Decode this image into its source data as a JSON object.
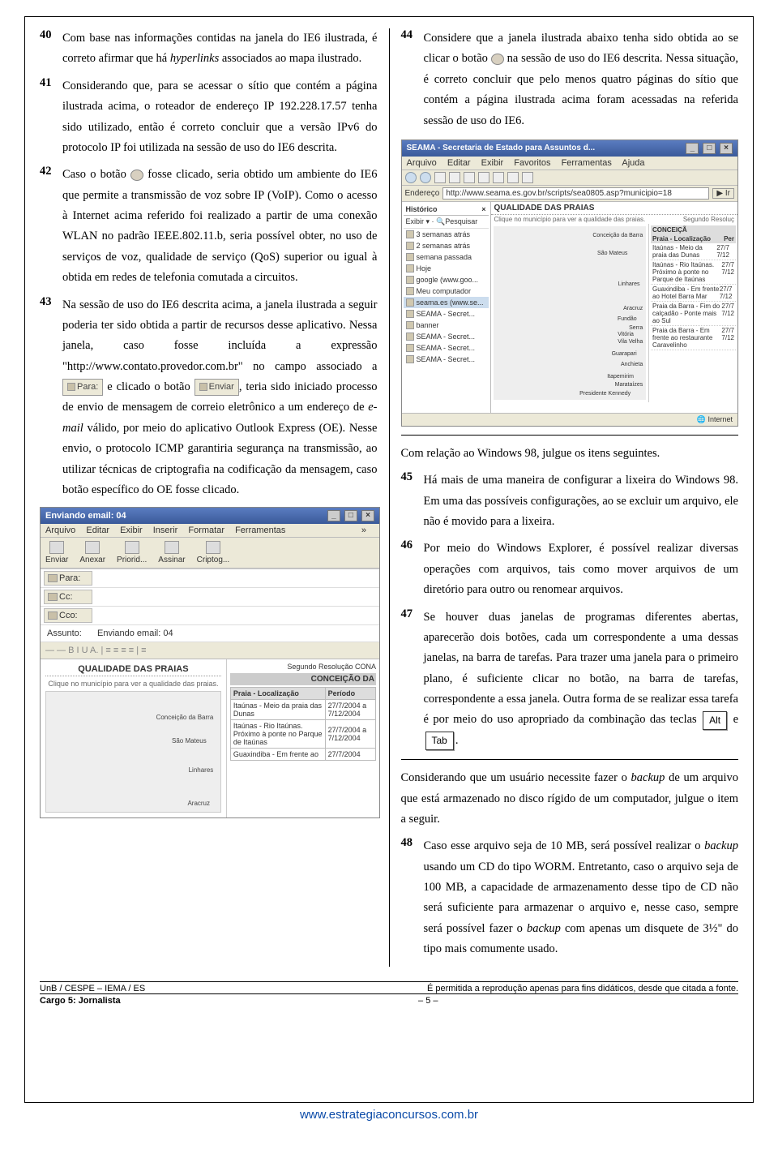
{
  "questions": {
    "q40": "Com base nas informações contidas na janela do IE6 ilustrada, é correto afirmar que há <span class=\"ital\">hyperlinks</span> associados ao mapa ilustrado.",
    "q41": "Considerando que, para se acessar o sítio que contém a página ilustrada acima, o roteador de endereço IP 192.228.17.57 tenha sido utilizado, então é correto concluir que a versão IPv6 do protocolo IP foi utilizada na sessão de uso do IE6 descrita.",
    "q42_a": "Caso o botão ",
    "q42_b": " fosse clicado, seria obtido um ambiente do IE6 que permite a transmissão de voz sobre IP (VoIP). Como o acesso à Internet acima referido foi realizado a partir de uma conexão WLAN no padrão IEEE.802.11.b, seria possível obter, no uso de serviços de voz, qualidade de serviço (QoS) superior ou igual à obtida em redes de telefonia comutada a circuitos.",
    "q43_a": "Na sessão de uso do IE6 descrita acima, a janela ilustrada a seguir poderia ter sido obtida a partir de recursos desse aplicativo. Nessa janela, caso fosse incluída a expressão \"http://www.contato.provedor.com.br\" no campo associado a ",
    "q43_b": " e clicado o botão ",
    "q43_c": ", teria sido iniciado processo de envio de mensagem de correio eletrônico a um endereço de <span class=\"ital\">e-mail</span> válido, por meio do aplicativo Outlook Express (OE). Nesse envio, o protocolo ICMP garantiria segurança na transmissão, ao utilizar técnicas de criptografia na codificação da mensagem, caso botão específico do OE fosse clicado.",
    "q44_a": "Considere que a janela ilustrada abaixo tenha sido obtida ao se clicar o botão ",
    "q44_b": " na sessão de uso do IE6 descrita. Nessa situação, é correto concluir que pelo menos quatro páginas do sítio que contém a página ilustrada acima foram acessadas na referida sessão de uso do IE6.",
    "lead45": "Com relação ao Windows 98, julgue os itens seguintes.",
    "q45": "Há mais de uma maneira de configurar a lixeira do Windows 98. Em uma das possíveis configurações, ao se excluir um arquivo, ele não é movido para a lixeira.",
    "q46": "Por meio do Windows Explorer, é possível realizar diversas operações com arquivos, tais como mover arquivos de um diretório para outro ou renomear arquivos.",
    "q47_a": "Se houver duas janelas de programas diferentes abertas, aparecerão dois botões, cada um correspondente a uma dessas janelas, na barra de tarefas. Para trazer uma janela para o primeiro plano, é suficiente clicar no botão, na barra de tarefas, correspondente a essa janela. Outra forma de se realizar essa tarefa é por meio do uso apropriado da combinação das teclas ",
    "q47_b": " e ",
    "q47_c": ".",
    "lead48": "Considerando que um usuário necessite fazer o <span class=\"ital\">backup</span> de um arquivo que está armazenado no disco rígido de um computador, julgue o item a seguir.",
    "q48": "Caso esse arquivo seja de 10 MB, será possível realizar o <span class=\"ital\">backup</span> usando um CD do tipo WORM. Entretanto, caso o arquivo seja de 100 MB, a capacidade de armazenamento desse tipo de CD não será suficiente para armazenar o arquivo e, nesse caso, sempre será possível fazer o <span class=\"ital\">backup</span> com apenas um disquete de 3½\" do tipo mais comumente usado."
  },
  "keys": {
    "alt": "Alt",
    "tab": "Tab"
  },
  "inline": {
    "para": "Para:",
    "enviar": "Enviar"
  },
  "mail": {
    "title": "Enviando email: 04",
    "menu": [
      "Arquivo",
      "Editar",
      "Exibir",
      "Inserir",
      "Formatar",
      "Ferramentas"
    ],
    "toolbar": [
      "Enviar",
      "Anexar",
      "Priorid...",
      "Assinar",
      "Criptog..."
    ],
    "fields": {
      "para": "Para:",
      "cc": "Cc:",
      "cco": "Cco:",
      "assunto_lbl": "Assunto:",
      "assunto_val": "Enviando email: 04"
    },
    "fmtbar": "― ―  B  I  U  A. | ≡  ≡  ≡ ≡ | ≡",
    "qhdr": "QUALIDADE DAS PRAIAS",
    "qsub": "Clique no município para ver a qualidade das praias.",
    "qresol": "Segundo Resolução CONA",
    "qsec": "CONCEIÇÃO DA",
    "th1": "Praia - Localização",
    "th2": "Período",
    "rows": [
      [
        "Itaúnas - Meio da praia das Dunas",
        "27/7/2004 a 7/12/2004"
      ],
      [
        "Itaúnas - Rio Itaúnas. Próximo à ponte no Parque de Itaúnas",
        "27/7/2004 a 7/12/2004"
      ],
      [
        "Guaxindiba - Em frente ao",
        "27/7/2004"
      ]
    ],
    "mappts": [
      "Conceição da Barra",
      "São Mateus",
      "Linhares",
      "Aracruz"
    ]
  },
  "ie": {
    "title": "SEAMA - Secretaria de Estado para Assuntos d...",
    "menu": [
      "Arquivo",
      "Editar",
      "Exibir",
      "Favoritos",
      "Ferramentas",
      "Ajuda"
    ],
    "addr_lbl": "Endereço",
    "addr_val": "http://www.seama.es.gov.br/scripts/sea0805.asp?municipio=18",
    "go": "Ir",
    "hist": "Histórico",
    "exibir": "Exibir ▾",
    "pesq": "Pesquisar",
    "side": [
      {
        "t": "3 semanas atrás",
        "sel": false
      },
      {
        "t": "2 semanas atrás",
        "sel": false
      },
      {
        "t": "semana passada",
        "sel": false
      },
      {
        "t": "Hoje",
        "sel": false
      },
      {
        "t": "google (www.goo...",
        "sel": false
      },
      {
        "t": "Meu computador",
        "sel": false
      },
      {
        "t": "seama.es (www.se...",
        "sel": true
      },
      {
        "t": "SEAMA - Secret...",
        "sel": false
      },
      {
        "t": "banner",
        "sel": false
      },
      {
        "t": "SEAMA - Secret...",
        "sel": false
      },
      {
        "t": "SEAMA - Secret...",
        "sel": false
      },
      {
        "t": "SEAMA - Secret...",
        "sel": false
      }
    ],
    "qhdr": "QUALIDADE DAS PRAIAS",
    "qsub": "Clique no município para ver a qualidade das praias.",
    "resol": "Segundo Resoluç",
    "sec": "CONCEIÇÃ",
    "th1": "Praia - Localização",
    "th2": "Per",
    "rpanel": [
      [
        "Itaúnas - Meio da praia das Dunas",
        "27/7 7/12"
      ],
      [
        "Itaúnas - Rio Itaúnas. Próximo à ponte no Parque de Itaúnas",
        "27/7 7/12"
      ],
      [
        "Guaxindiba - Em frente ao Hotel Barra Mar",
        "27/7 7/12"
      ],
      [
        "Praia da Barra - Fim do calçadão - Ponte mais ao Sul",
        "27/7 7/12"
      ],
      [
        "Praia da Barra - Em frente ao restaurante Caravelinho",
        "27/7 7/12"
      ]
    ],
    "mappts": [
      "Conceição da Barra",
      "São Mateus",
      "Linhares",
      "Aracruz",
      "Fundão",
      "Serra",
      "Vitória",
      "Vila Velha",
      "Guarapari",
      "Anchieta",
      "Itapemirim",
      "Marataízes",
      "Presidente Kennedy"
    ],
    "status_l": "",
    "status_r": "Internet"
  },
  "footer": {
    "left": "UnB / CESPE – IEMA / ES",
    "right": "É permitida a reprodução apenas para fins didáticos, desde que citada a fonte.",
    "cargo": "Cargo 5: Jornalista",
    "page": "– 5 –",
    "site": "www.estrategiaconcursos.com.br"
  }
}
